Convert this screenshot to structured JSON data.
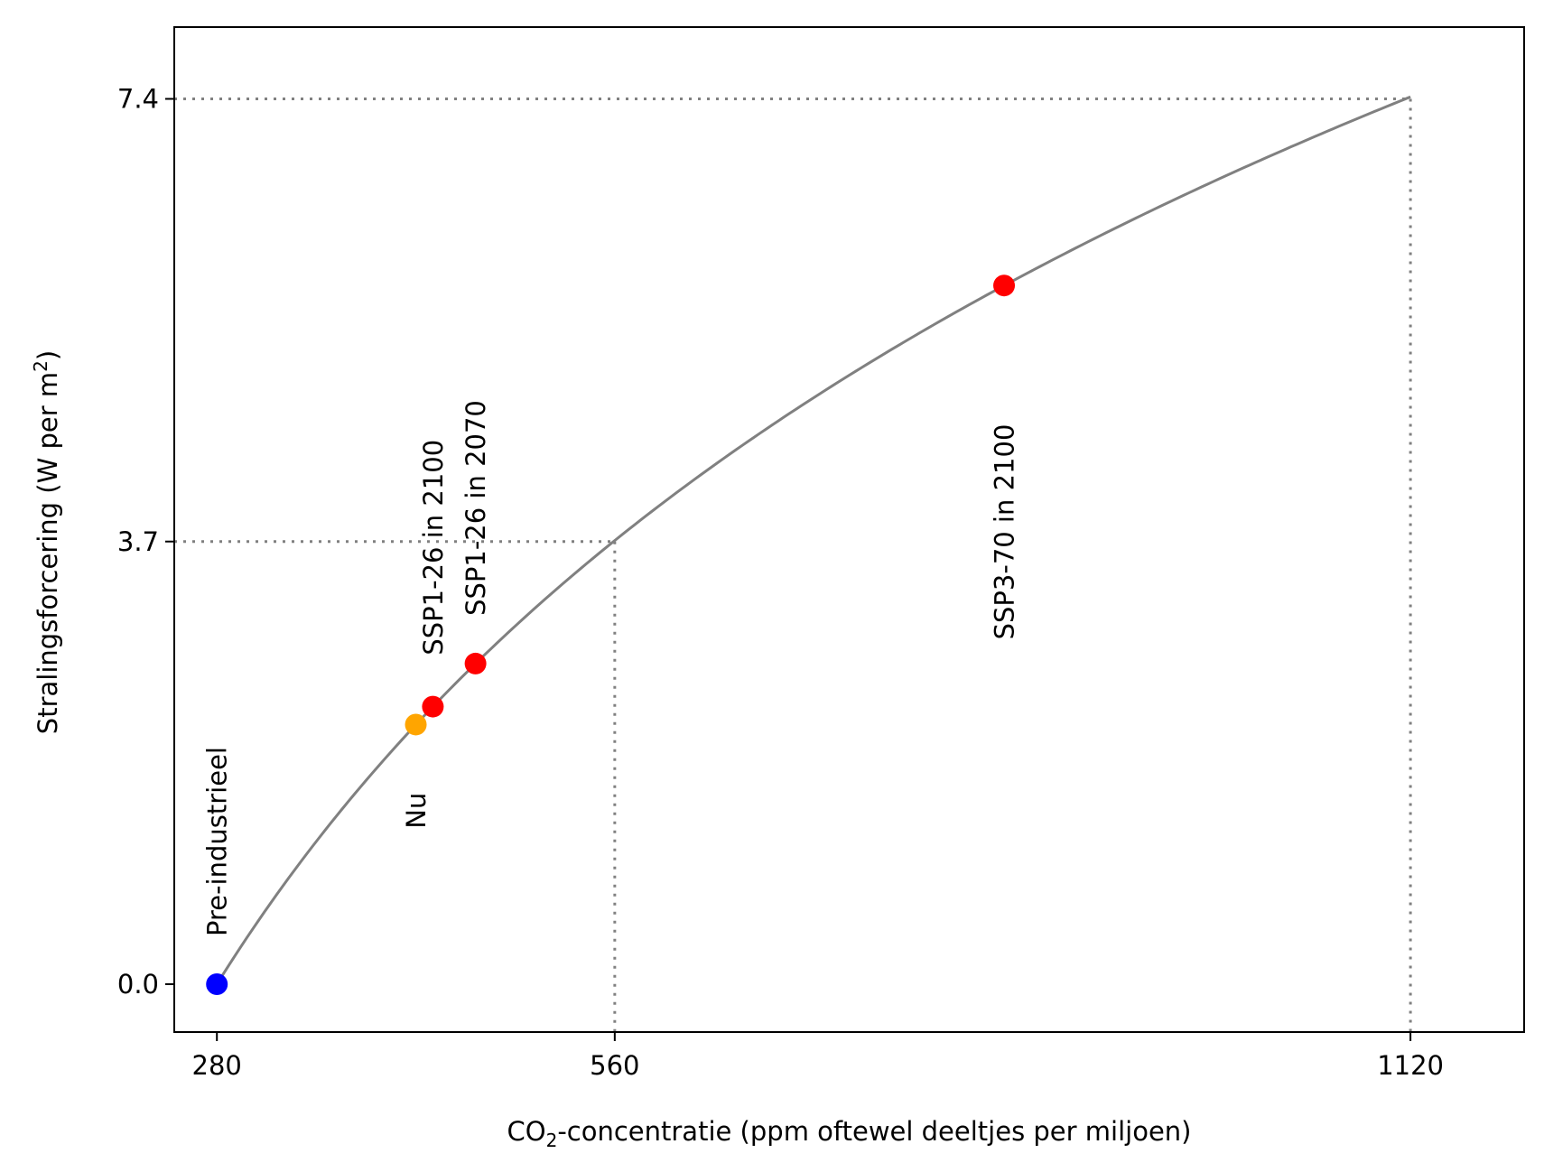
{
  "chart_data": {
    "type": "line",
    "xlabel": {
      "prefix": "CO",
      "sub": "2",
      "suffix": "-concentratie (ppm oftewel deeltjes per miljoen)"
    },
    "ylabel": {
      "prefix": "Stralingsforcering (W per m",
      "sup": "2",
      "suffix": ")"
    },
    "xlim": [
      250,
      1200
    ],
    "ylim": [
      -0.4,
      8.0
    ],
    "x_scale": "linear",
    "grid": false,
    "x_ticks": [
      280,
      560,
      1120
    ],
    "x_tick_labels": [
      "280",
      "560",
      "1120"
    ],
    "y_ticks": [
      0.0,
      3.7,
      7.4
    ],
    "y_tick_labels": [
      "0.0",
      "3.7",
      "7.4"
    ],
    "curve": {
      "formula": "5.35 * ln(C / 280)",
      "x_range": [
        280,
        1120
      ],
      "color": "#808080"
    },
    "reference_lines": [
      {
        "x": 560,
        "y": 3.7,
        "color": "#808080",
        "style": "dotted"
      },
      {
        "x": 1120,
        "y": 7.4,
        "color": "#808080",
        "style": "dotted"
      }
    ],
    "points": [
      {
        "x": 280,
        "y": 0.0,
        "color": "#0000ff"
      },
      {
        "x": 420,
        "y": 2.17,
        "color": "#ffa500"
      },
      {
        "x": 432,
        "y": 2.32,
        "color": "#ff0000"
      },
      {
        "x": 462,
        "y": 2.68,
        "color": "#ff0000"
      },
      {
        "x": 834,
        "y": 5.84,
        "color": "#ff0000"
      }
    ],
    "annotations": [
      {
        "text": "Pre-industrieel",
        "x": 280,
        "y": 0.4,
        "rotation": 90
      },
      {
        "text": "Nu",
        "x": 420,
        "y": 1.3,
        "rotation": 90
      },
      {
        "text": "SSP1-26 in 2100",
        "x": 432,
        "y": 2.75,
        "rotation": 90
      },
      {
        "text": "SSP1-26 in 2070",
        "x": 462,
        "y": 3.08,
        "rotation": 90
      },
      {
        "text": "SSP3-70 in 2100",
        "x": 834,
        "y": 2.88,
        "rotation": 90
      }
    ]
  }
}
